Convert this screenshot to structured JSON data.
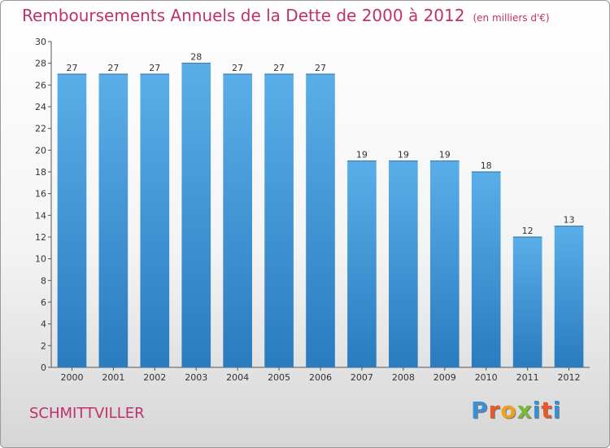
{
  "header": {
    "title": "Remboursements Annuels de la Dette de 2000 à 2012",
    "subtitle": "(en milliers d'€)"
  },
  "footer": {
    "commune": "SCHMITTVILLER",
    "logo_letters": [
      "P",
      "r",
      "o",
      "x",
      "i",
      "t",
      "i"
    ]
  },
  "colors": {
    "title": "#c0306a",
    "bar_top": "#5aaee8",
    "bar_bottom": "#2a7bbf",
    "logo": [
      "#3a8fd6",
      "#e8582a",
      "#f0a020",
      "#7ab83a",
      "#3a8fd6",
      "#e8582a",
      "#3a8fd6"
    ]
  },
  "chart_data": {
    "type": "bar",
    "title": "Remboursements Annuels de la Dette de 2000 à 2012",
    "categories": [
      "2000",
      "2001",
      "2002",
      "2003",
      "2004",
      "2005",
      "2006",
      "2007",
      "2008",
      "2009",
      "2010",
      "2011",
      "2012"
    ],
    "values": [
      27,
      27,
      27,
      28,
      27,
      27,
      27,
      19,
      19,
      19,
      18,
      12,
      13
    ],
    "ylim": [
      0,
      30
    ],
    "yticks": [
      0,
      2,
      4,
      6,
      8,
      10,
      12,
      14,
      16,
      18,
      20,
      22,
      24,
      26,
      28,
      30
    ],
    "grid": false,
    "legend": "none"
  }
}
